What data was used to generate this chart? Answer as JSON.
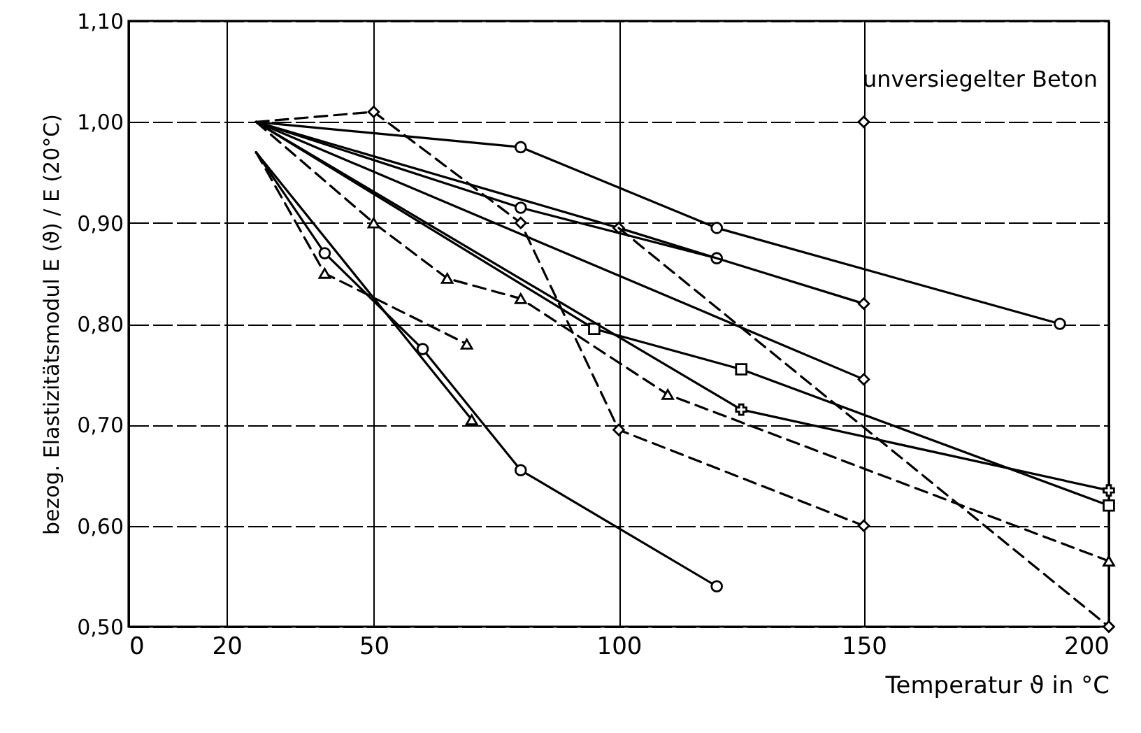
{
  "chart_data": {
    "type": "line",
    "xlabel": "Temperatur ϑ in °C",
    "ylabel": "bezog. Elastizitätsmodul  E (ϑ) / E (20°C)",
    "annotations": [
      "unversiegelter Beton"
    ],
    "xlim": [
      0,
      200
    ],
    "xticks": [
      0,
      20,
      50,
      100,
      150,
      200
    ],
    "ylim": [
      0.5,
      1.1
    ],
    "yticks": [
      {
        "value": 0.5,
        "label": "0,50"
      },
      {
        "value": 0.6,
        "label": "0,60"
      },
      {
        "value": 0.7,
        "label": "0,70"
      },
      {
        "value": 0.8,
        "label": "0,80"
      },
      {
        "value": 0.9,
        "label": "0,90"
      },
      {
        "value": 1.0,
        "label": "1,00"
      },
      {
        "value": 1.1,
        "label": "1,10"
      }
    ],
    "grid": true,
    "series": [
      {
        "color": "#000000",
        "marker": "circle",
        "line_style": "solid",
        "x": [
          26,
          80,
          120,
          190
        ],
        "values": [
          1.0,
          0.975,
          0.895,
          0.8
        ]
      },
      {
        "color": "#000000",
        "marker": "diamond",
        "line_style": "dashed",
        "x": [
          26,
          50,
          80,
          100,
          150
        ],
        "values": [
          1.0,
          1.01,
          0.9,
          0.695,
          0.6
        ]
      },
      {
        "color": "#000000",
        "marker": "circle",
        "line_style": "solid",
        "x": [
          26,
          80,
          120
        ],
        "values": [
          1.0,
          0.915,
          0.865
        ]
      },
      {
        "color": "#000000",
        "marker": "diamond",
        "line_style": "solid",
        "x": [
          26,
          100,
          150
        ],
        "values": [
          1.0,
          0.895,
          0.82
        ]
      },
      {
        "color": "#000000",
        "marker": "diamond",
        "line_style": "dashed",
        "x": [
          100,
          200
        ],
        "values": [
          0.895,
          0.5
        ]
      },
      {
        "type": "scatter",
        "color": "#000000",
        "marker": "diamond",
        "x": [
          150
        ],
        "values": [
          1.0
        ]
      },
      {
        "color": "#000000",
        "marker": "triangle",
        "line_style": "dashed",
        "x": [
          26,
          50,
          65,
          80,
          110,
          200
        ],
        "values": [
          1.0,
          0.9,
          0.845,
          0.825,
          0.73,
          0.565
        ]
      },
      {
        "color": "#000000",
        "marker": "square",
        "line_style": "solid",
        "x": [
          26,
          95,
          125,
          200
        ],
        "values": [
          1.0,
          0.795,
          0.755,
          0.62
        ]
      },
      {
        "color": "#000000",
        "marker": "cross",
        "line_style": "solid",
        "x": [
          26,
          125,
          200
        ],
        "values": [
          1.0,
          0.715,
          0.635
        ]
      },
      {
        "color": "#000000",
        "marker": "diamond",
        "line_style": "solid",
        "x": [
          26,
          150
        ],
        "values": [
          1.0,
          0.745
        ]
      },
      {
        "color": "#000000",
        "marker": "triangle",
        "line_style": "dashed",
        "x": [
          26,
          40,
          69
        ],
        "values": [
          0.97,
          0.85,
          0.78
        ]
      },
      {
        "color": "#000000",
        "marker": "circle",
        "line_style": "solid",
        "x": [
          26,
          40,
          60,
          80,
          120
        ],
        "values": [
          0.97,
          0.87,
          0.775,
          0.655,
          0.54
        ]
      },
      {
        "color": "#000000",
        "marker": "triangle",
        "line_style": "solid",
        "x": [
          26,
          70
        ],
        "values": [
          0.97,
          0.705
        ]
      }
    ]
  }
}
